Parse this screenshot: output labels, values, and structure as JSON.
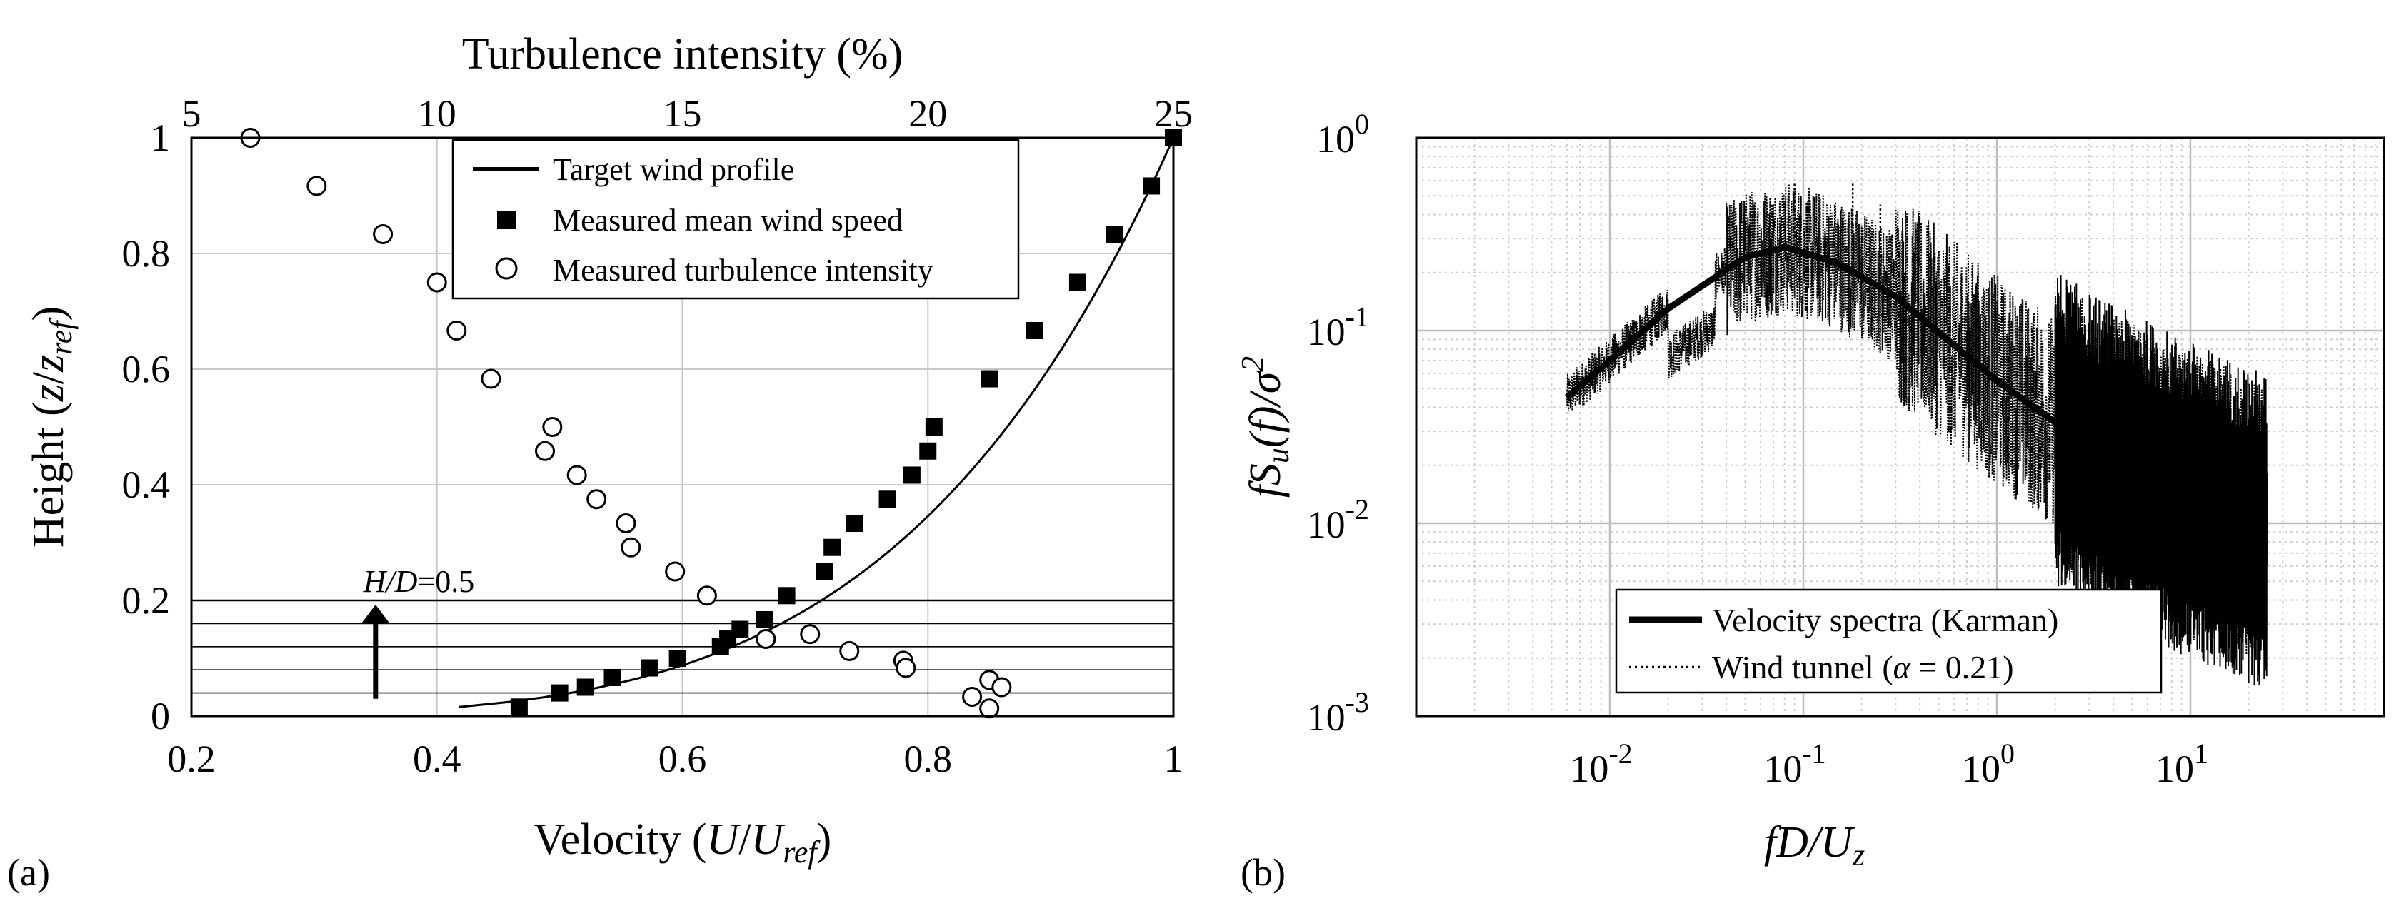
{
  "panel_a_label": "(a)",
  "panel_b_label": "(b)",
  "chart_data": [
    {
      "type": "scatter",
      "id": "panel-a",
      "title": "",
      "xlabel": "Velocity (U/U_ref)",
      "xlabel_parts": [
        "Velocity (",
        "U",
        "/",
        "U",
        "ref",
        ")"
      ],
      "ylabel_parts": [
        "Height (",
        "z",
        "/",
        "z",
        "ref",
        ")"
      ],
      "x2label": "Turbulence intensity (%)",
      "xlim": [
        0.2,
        1.0
      ],
      "ylim": [
        0,
        1.0
      ],
      "x2lim": [
        5,
        25
      ],
      "xticks": [
        "0.2",
        "0.4",
        "0.6",
        "0.8",
        "1"
      ],
      "yticks": [
        "0",
        "0.2",
        "0.4",
        "0.6",
        "0.8",
        "1"
      ],
      "x2ticks": [
        "5",
        "10",
        "15",
        "20",
        "25"
      ],
      "grid": true,
      "legend_position": "top-right",
      "legend": [
        "Target wind profile",
        "Measured mean wind speed",
        "Measured turbulence intensity"
      ],
      "annotation": {
        "text_italic": "H/D",
        "text_rest": "=0.5",
        "y_level": 0.2
      },
      "building_levels": [
        0.04,
        0.08,
        0.12,
        0.16,
        0.2
      ],
      "target_profile": {
        "alpha": 0.21,
        "y_start": 0.0157,
        "y_end": 1.0
      },
      "mean_wind_speed": {
        "y": [
          0.0157,
          0.04,
          0.05,
          0.0667,
          0.0833,
          0.1,
          0.12,
          0.1333,
          0.15,
          0.1667,
          0.2083,
          0.25,
          0.2917,
          0.3333,
          0.375,
          0.4167,
          0.4583,
          0.5,
          0.5833,
          0.6667,
          0.75,
          0.8333,
          0.9167,
          1.0
        ],
        "x": [
          0.467,
          0.5,
          0.521,
          0.543,
          0.573,
          0.596,
          0.631,
          0.637,
          0.647,
          0.667,
          0.685,
          0.716,
          0.722,
          0.74,
          0.767,
          0.787,
          0.8,
          0.805,
          0.85,
          0.887,
          0.922,
          0.952,
          0.982,
          1.0
        ]
      },
      "turbulence_intensity": {
        "y": [
          1.0,
          0.9167,
          0.8333,
          0.75,
          0.6667,
          0.5833,
          0.5,
          0.4583,
          0.4167,
          0.375,
          0.3333,
          0.2917,
          0.25,
          0.2083,
          0.1417,
          0.1333,
          0.1125,
          0.0958,
          0.0833,
          0.0625,
          0.0333,
          0.05,
          0.0133
        ],
        "x": [
          6.2,
          7.55,
          8.9,
          10.0,
          10.4,
          11.1,
          12.35,
          12.2,
          12.85,
          13.25,
          13.85,
          13.95,
          14.85,
          15.5,
          17.6,
          16.7,
          18.4,
          19.5,
          19.55,
          21.25,
          20.9,
          21.5,
          21.25
        ]
      }
    },
    {
      "type": "line",
      "id": "panel-b",
      "scale": "log-log",
      "xlabel_parts": [
        "fD",
        "/",
        "U",
        "z"
      ],
      "ylabel_parts": [
        "fS",
        "u",
        "(",
        "f",
        ")/",
        "σ",
        "2"
      ],
      "xlim": [
        0.001,
        100
      ],
      "ylim": [
        0.001,
        1
      ],
      "xticks": [
        {
          "base": "10",
          "exp": "-2"
        },
        {
          "base": "10",
          "exp": "-1"
        },
        {
          "base": "10",
          "exp": "0"
        },
        {
          "base": "10",
          "exp": "1"
        }
      ],
      "yticks": [
        {
          "base": "10",
          "exp": "-3"
        },
        {
          "base": "10",
          "exp": "-2"
        },
        {
          "base": "10",
          "exp": "-1"
        },
        {
          "base": "10",
          "exp": "0"
        }
      ],
      "grid": true,
      "legend_position": "bottom-center",
      "legend": [
        {
          "label": "Velocity spectra (Karman)"
        },
        {
          "label_pre": "Wind tunnel (",
          "label_symbol": "α",
          "label_post": " = 0.21)"
        }
      ],
      "karman_spectrum": {
        "x_range": [
          0.006,
          25
        ],
        "samples": {
          "x": [
            0.006,
            0.01,
            0.02,
            0.05,
            0.08,
            0.15,
            0.3,
            1.0,
            3.0,
            10.0,
            25.0
          ],
          "y": [
            0.045,
            0.07,
            0.13,
            0.24,
            0.27,
            0.225,
            0.15,
            0.055,
            0.025,
            0.014,
            0.0095
          ]
        }
      },
      "wind_tunnel": {
        "x_range": [
          0.006,
          25
        ],
        "peak_values": {
          "x": [
            0.09,
            0.18,
            0.25
          ],
          "y": [
            0.58,
            0.58,
            0.45
          ]
        },
        "low_dip": {
          "x": 0.028,
          "y": 0.1
        }
      }
    }
  ]
}
